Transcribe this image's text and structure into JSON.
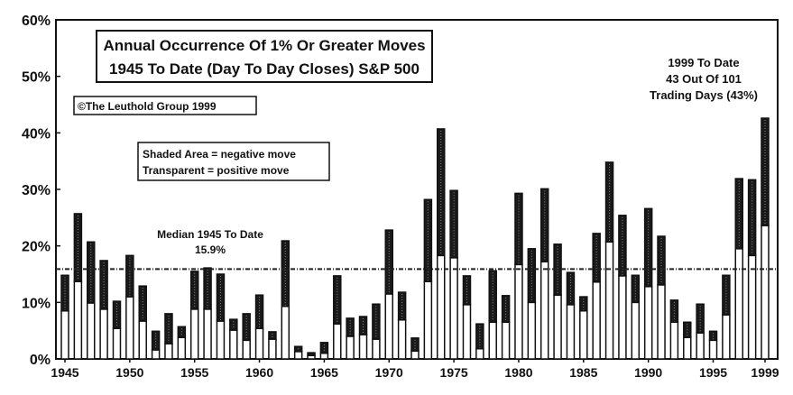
{
  "chart_data": {
    "type": "bar",
    "stacked": true,
    "title_lines": [
      "Annual Occurrence Of 1% Or Greater Moves",
      "1945 To Date (Day To Day Closes) S&P 500"
    ],
    "copyright": "©The Leuthold Group 1999",
    "legend_lines": [
      "Shaded Area = negative move",
      "Transparent = positive move"
    ],
    "annotation_lines": [
      "1999 To Date",
      "43 Out Of 101",
      "Trading Days (43%)"
    ],
    "median": {
      "value": 15.9,
      "label_lines": [
        "Median 1945 To Date",
        "15.9%"
      ]
    },
    "ylim": [
      0,
      60
    ],
    "yticks": [
      "0%",
      "10%",
      "20%",
      "30%",
      "40%",
      "50%",
      "60%"
    ],
    "xticks": [
      "1945",
      "1950",
      "1955",
      "1960",
      "1965",
      "1970",
      "1975",
      "1980",
      "1985",
      "1990",
      "1995",
      "1999"
    ],
    "x": [
      1945,
      1946,
      1947,
      1948,
      1949,
      1950,
      1951,
      1952,
      1953,
      1954,
      1955,
      1956,
      1957,
      1958,
      1959,
      1960,
      1961,
      1962,
      1963,
      1964,
      1965,
      1966,
      1967,
      1968,
      1969,
      1970,
      1971,
      1972,
      1973,
      1974,
      1975,
      1976,
      1977,
      1978,
      1979,
      1980,
      1981,
      1982,
      1983,
      1984,
      1985,
      1986,
      1987,
      1988,
      1989,
      1990,
      1991,
      1992,
      1993,
      1994,
      1995,
      1996,
      1997,
      1998,
      1999
    ],
    "series": [
      {
        "name": "Transparent = positive move",
        "values": [
          8.5,
          13.7,
          9.9,
          8.8,
          5.4,
          11,
          6.7,
          1.6,
          2.7,
          3.8,
          8.8,
          8.8,
          6.7,
          5.1,
          3.3,
          5.4,
          3.5,
          9.3,
          1.3,
          0.6,
          1,
          6.2,
          4,
          4.3,
          3.5,
          11.5,
          6.9,
          1.4,
          13.7,
          18.3,
          17.9,
          9.6,
          1.8,
          6.5,
          6.5,
          16.7,
          10,
          17.2,
          11.3,
          9.6,
          8.5,
          13.6,
          20.7,
          14.7,
          10,
          12.8,
          13.1,
          6.5,
          3.8,
          4.6,
          3.3,
          7.8,
          19.5,
          18.3,
          23.6
        ]
      },
      {
        "name": "Shaded Area = negative move",
        "values": [
          6.3,
          12,
          10.8,
          8.6,
          4.8,
          7.3,
          6.2,
          3.3,
          5.3,
          1.9,
          6.7,
          7.3,
          8.3,
          1.9,
          4.7,
          5.9,
          1.3,
          11.6,
          0.9,
          0.5,
          1.9,
          8.5,
          3.2,
          3.2,
          6.2,
          11.3,
          4.9,
          2.3,
          14.5,
          22.4,
          11.9,
          5.1,
          4.4,
          9.1,
          4.7,
          12.6,
          9.5,
          12.9,
          9,
          5.7,
          2.5,
          8.6,
          14.1,
          10.7,
          4.8,
          13.8,
          8.6,
          3.9,
          2.7,
          5.1,
          1.6,
          7,
          12.4,
          13.4,
          19
        ]
      }
    ],
    "colors": {
      "shaded": "#1a1a1a",
      "transparent": "#ffffff",
      "median_line": "#222222"
    },
    "grid": false
  }
}
